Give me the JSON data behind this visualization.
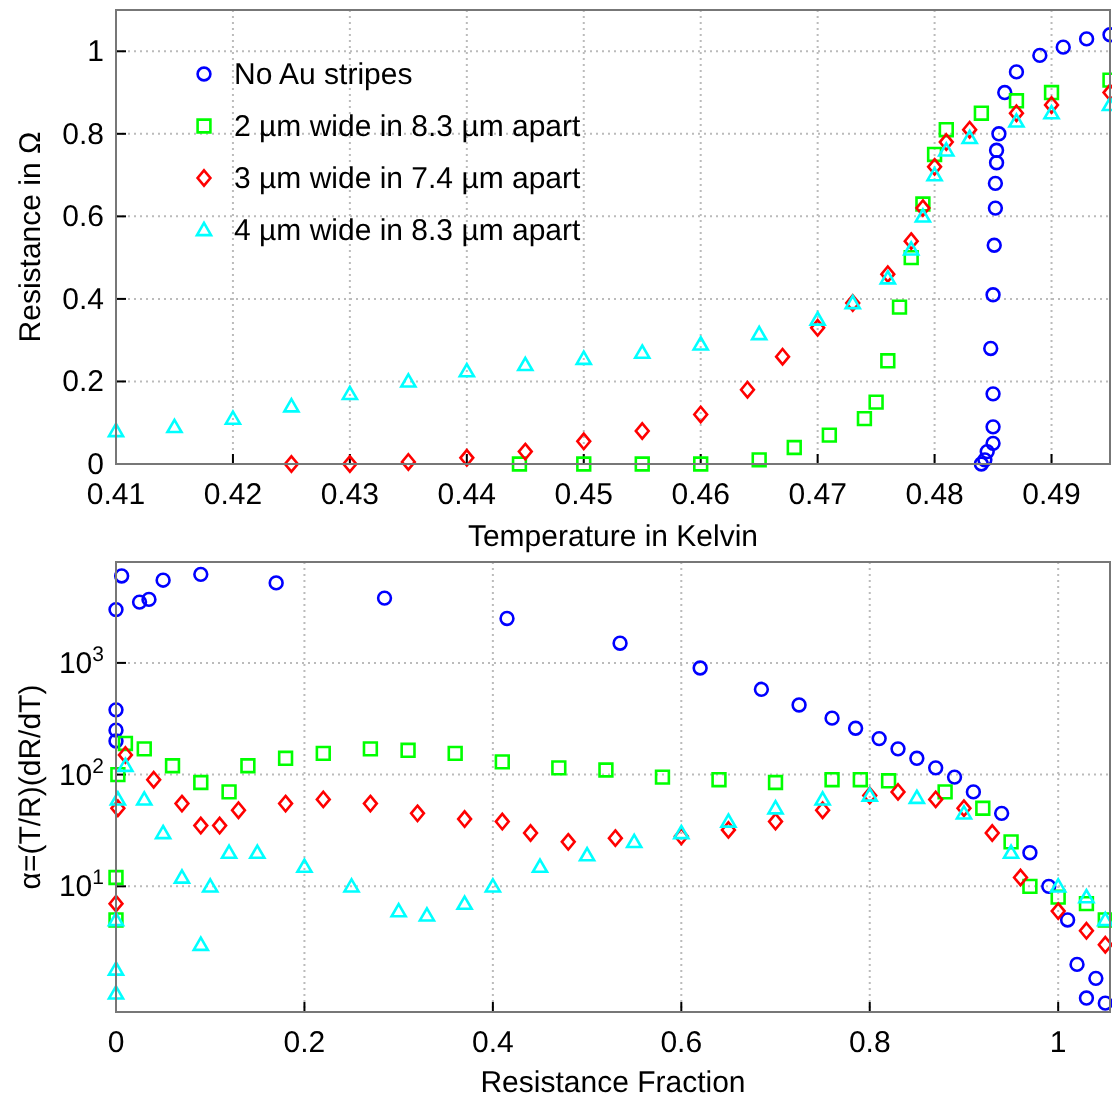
{
  "chart_data": [
    {
      "type": "scatter",
      "xlabel": "Temperature in Kelvin",
      "ylabel": "Resistance in Ω",
      "xlim": [
        0.41,
        0.495
      ],
      "ylim": [
        0,
        1.1
      ],
      "xticks": [
        0.41,
        0.42,
        0.43,
        0.44,
        0.45,
        0.46,
        0.47,
        0.48,
        0.49
      ],
      "yticks": [
        0,
        0.2,
        0.4,
        0.6,
        0.8,
        1
      ],
      "grid": true,
      "legend": "top left",
      "series": [
        {
          "name": "No Au stripes",
          "color": "#0000ff",
          "marker": "circle",
          "x": [
            0.484,
            0.4843,
            0.4845,
            0.485,
            0.485,
            0.485,
            0.4848,
            0.485,
            0.4851,
            0.4852,
            0.4852,
            0.4853,
            0.4853,
            0.4855,
            0.486,
            0.487,
            0.489,
            0.491,
            0.493,
            0.495
          ],
          "values": [
            0,
            0.01,
            0.03,
            0.05,
            0.09,
            0.17,
            0.28,
            0.41,
            0.53,
            0.62,
            0.68,
            0.73,
            0.76,
            0.8,
            0.9,
            0.95,
            0.99,
            1.01,
            1.03,
            1.04
          ]
        },
        {
          "name": "2 µm wide in 8.3 µm apart",
          "color": "#00ff00",
          "marker": "square",
          "x": [
            0.4445,
            0.45,
            0.455,
            0.46,
            0.465,
            0.468,
            0.471,
            0.474,
            0.475,
            0.476,
            0.477,
            0.478,
            0.479,
            0.48,
            0.481,
            0.484,
            0.487,
            0.49,
            0.495
          ],
          "values": [
            0,
            0,
            0,
            0,
            0.01,
            0.04,
            0.07,
            0.11,
            0.15,
            0.25,
            0.38,
            0.5,
            0.63,
            0.75,
            0.81,
            0.85,
            0.88,
            0.9,
            0.93
          ]
        },
        {
          "name": "3 µm wide in 7.4 µm apart",
          "color": "#ff0000",
          "marker": "diamond",
          "x": [
            0.425,
            0.43,
            0.435,
            0.44,
            0.445,
            0.45,
            0.455,
            0.46,
            0.464,
            0.467,
            0.47,
            0.473,
            0.476,
            0.478,
            0.479,
            0.48,
            0.481,
            0.483,
            0.487,
            0.49,
            0.495
          ],
          "values": [
            0,
            0,
            0.005,
            0.015,
            0.03,
            0.055,
            0.08,
            0.12,
            0.18,
            0.26,
            0.33,
            0.39,
            0.46,
            0.54,
            0.62,
            0.72,
            0.78,
            0.81,
            0.85,
            0.87,
            0.9
          ]
        },
        {
          "name": "4 µm wide in 8.3 µm apart",
          "color": "#00ffff",
          "marker": "triangle",
          "x": [
            0.41,
            0.415,
            0.42,
            0.425,
            0.43,
            0.435,
            0.44,
            0.445,
            0.45,
            0.455,
            0.46,
            0.465,
            0.47,
            0.473,
            0.476,
            0.478,
            0.479,
            0.48,
            0.481,
            0.483,
            0.487,
            0.49,
            0.495
          ],
          "values": [
            0.08,
            0.09,
            0.11,
            0.14,
            0.17,
            0.2,
            0.225,
            0.24,
            0.255,
            0.27,
            0.29,
            0.315,
            0.35,
            0.39,
            0.45,
            0.52,
            0.6,
            0.7,
            0.76,
            0.79,
            0.83,
            0.85,
            0.87
          ]
        }
      ]
    },
    {
      "type": "scatter",
      "xlabel": "Resistance Fraction",
      "ylabel": "α=(T/R)(dR/dT)",
      "log": "y",
      "xlim": [
        0,
        1.055
      ],
      "ylim": [
        0.75,
        8000
      ],
      "xticks": [
        0,
        0.2,
        0.4,
        0.6,
        0.8,
        1
      ],
      "yticks": [
        {
          "value": 10,
          "label": "10$^{1}$"
        },
        {
          "value": 100,
          "label": "10$^{2}$"
        },
        {
          "value": 1000,
          "label": "10$^{3}$"
        }
      ],
      "grid": true,
      "series": [
        {
          "color": "#0000ff",
          "marker": "circle",
          "x": [
            0,
            0,
            0,
            0,
            0.006,
            0.025,
            0.035,
            0.05,
            0.09,
            0.17,
            0.285,
            0.415,
            0.535,
            0.62,
            0.685,
            0.725,
            0.76,
            0.785,
            0.81,
            0.83,
            0.85,
            0.87,
            0.89,
            0.91,
            0.94,
            0.97,
            0.99,
            1.01,
            1.02,
            1.03,
            1.04,
            1.05
          ],
          "values": [
            200,
            250,
            380,
            3000,
            6000,
            3500,
            3700,
            5500,
            6200,
            5200,
            3800,
            2500,
            1500,
            900,
            580,
            420,
            320,
            260,
            210,
            170,
            140,
            115,
            95,
            70,
            45,
            20,
            10,
            5,
            2,
            1,
            1.5,
            0.9
          ]
        },
        {
          "color": "#00ff00",
          "marker": "square",
          "x": [
            0,
            0,
            0.002,
            0.01,
            0.03,
            0.06,
            0.09,
            0.12,
            0.14,
            0.18,
            0.22,
            0.27,
            0.31,
            0.36,
            0.41,
            0.47,
            0.52,
            0.58,
            0.64,
            0.7,
            0.76,
            0.79,
            0.82,
            0.88,
            0.92,
            0.95,
            0.97,
            1,
            1.03,
            1.05
          ],
          "values": [
            5,
            12,
            100,
            190,
            170,
            120,
            85,
            70,
            120,
            140,
            155,
            170,
            165,
            155,
            130,
            115,
            110,
            95,
            90,
            85,
            90,
            90,
            88,
            70,
            50,
            25,
            10,
            8,
            7,
            5
          ]
        },
        {
          "color": "#ff0000",
          "marker": "diamond",
          "x": [
            0,
            0.002,
            0.01,
            0.04,
            0.07,
            0.09,
            0.11,
            0.13,
            0.18,
            0.22,
            0.27,
            0.32,
            0.37,
            0.41,
            0.44,
            0.48,
            0.53,
            0.6,
            0.65,
            0.7,
            0.75,
            0.8,
            0.83,
            0.87,
            0.9,
            0.93,
            0.96,
            1,
            1.03,
            1.05
          ],
          "values": [
            7,
            50,
            150,
            90,
            55,
            35,
            35,
            48,
            55,
            60,
            55,
            45,
            40,
            38,
            30,
            25,
            27,
            28,
            32,
            38,
            48,
            65,
            70,
            60,
            50,
            30,
            12,
            6,
            4,
            3
          ]
        },
        {
          "color": "#00ffff",
          "marker": "triangle",
          "x": [
            0,
            0,
            0,
            0.002,
            0.01,
            0.03,
            0.05,
            0.07,
            0.09,
            0.1,
            0.12,
            0.15,
            0.2,
            0.25,
            0.3,
            0.33,
            0.37,
            0.4,
            0.45,
            0.5,
            0.55,
            0.6,
            0.65,
            0.7,
            0.75,
            0.8,
            0.85,
            0.9,
            0.95,
            1,
            1.03,
            1.05
          ],
          "values": [
            1.1,
            1.8,
            5,
            60,
            120,
            60,
            30,
            12,
            3,
            10,
            20,
            20,
            15,
            10,
            6,
            5.5,
            7,
            10,
            15,
            19,
            25,
            30,
            38,
            50,
            60,
            65,
            62,
            45,
            20,
            10,
            8,
            5
          ]
        }
      ]
    }
  ]
}
